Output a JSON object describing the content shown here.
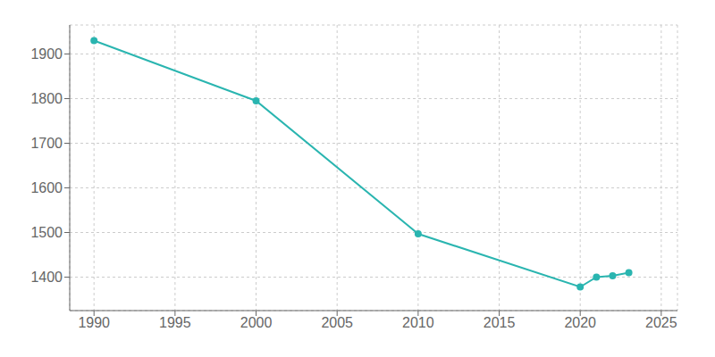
{
  "chart_data": {
    "type": "line",
    "x": [
      1990,
      2000,
      2010,
      2020,
      2021,
      2022,
      2023
    ],
    "values": [
      1930,
      1795,
      1497,
      1378,
      1400,
      1403,
      1410
    ],
    "color": "#2ab5b0",
    "marker": "circle",
    "xlim": [
      1988.5,
      2026
    ],
    "ylim": [
      1325,
      1965
    ],
    "xticks": [
      1990,
      1995,
      2000,
      2005,
      2010,
      2015,
      2020,
      2025
    ],
    "yticks": [
      1400,
      1500,
      1600,
      1700,
      1800,
      1900
    ],
    "grid": true
  }
}
